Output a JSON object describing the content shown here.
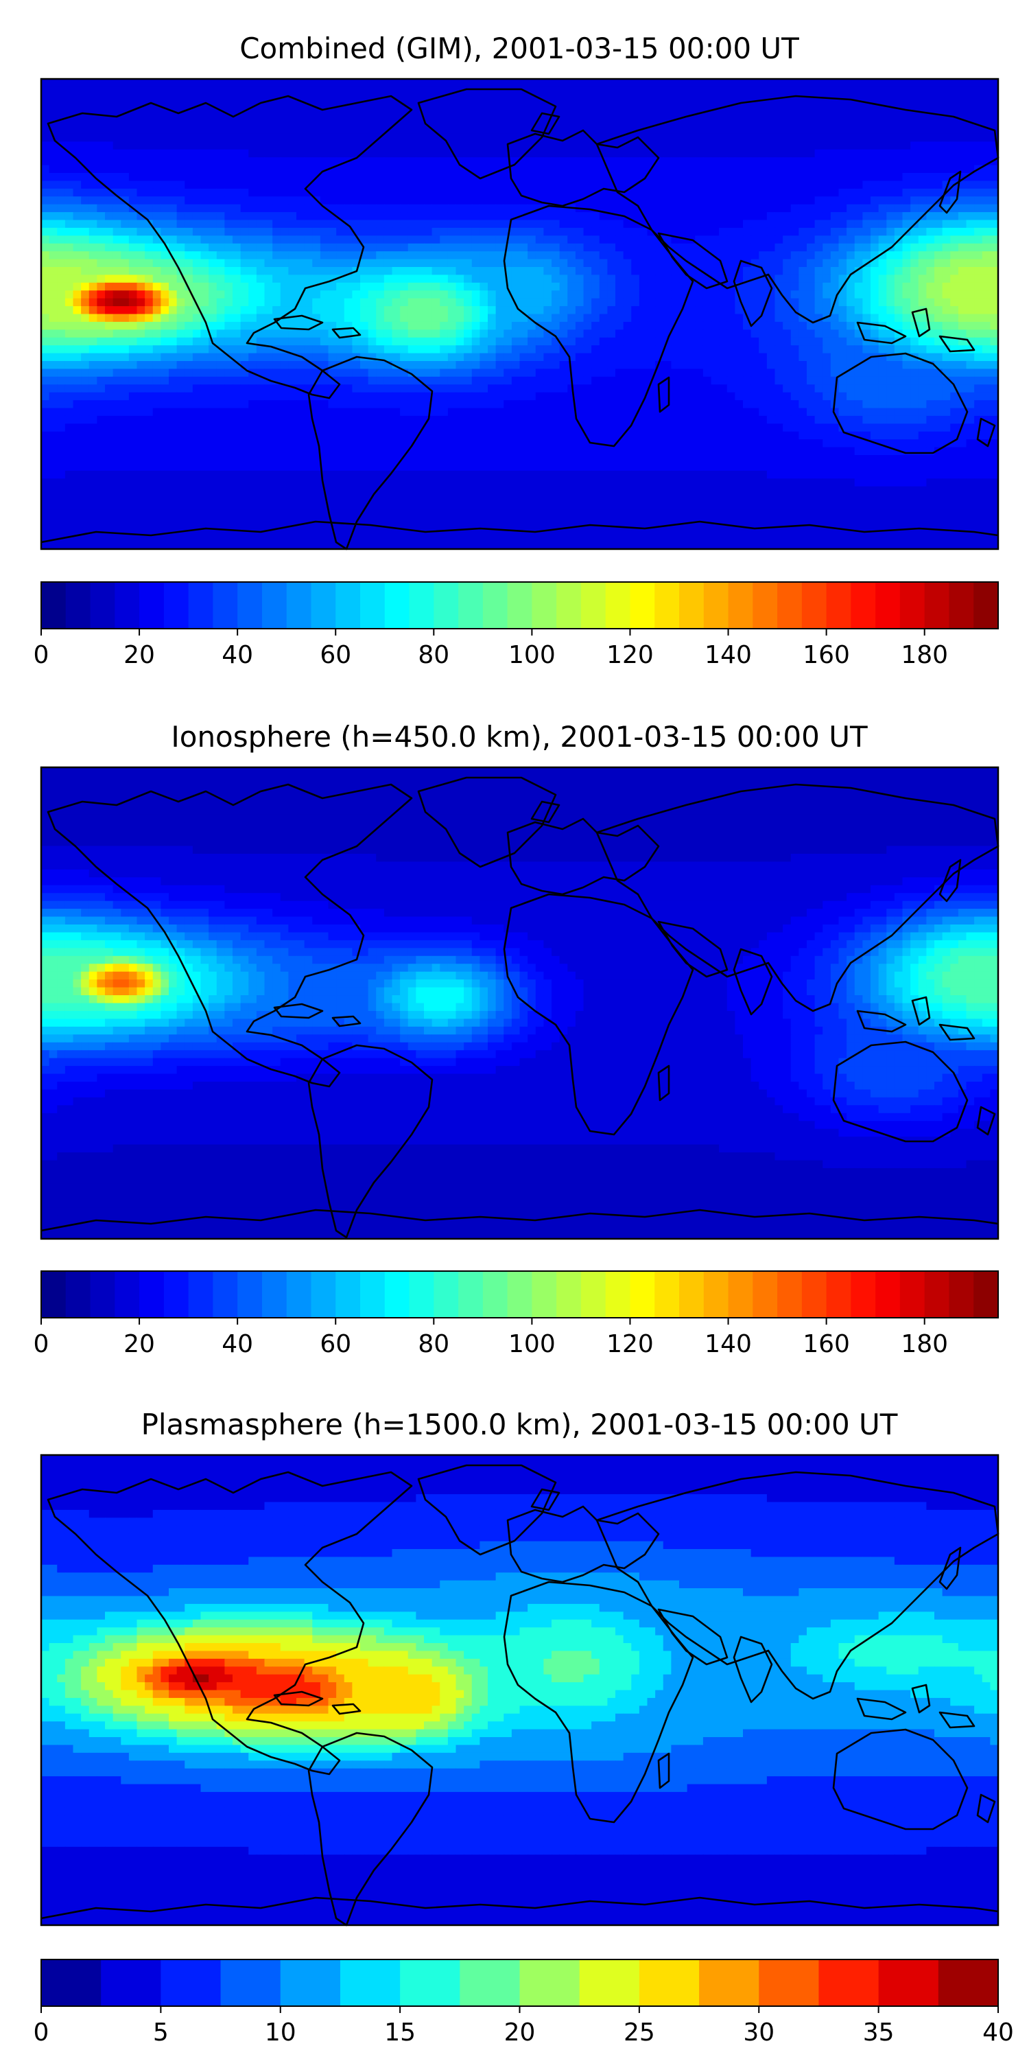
{
  "chart_data": [
    {
      "type": "heatmap",
      "title": "Combined (GIM), 2001-03-15 00:00 UT",
      "map_projection": "equirectangular world map with coastlines",
      "colormap": "jet",
      "colorbar": {
        "ticks": [
          0,
          20,
          40,
          60,
          80,
          100,
          120,
          140,
          160,
          180
        ],
        "range": [
          0,
          195
        ],
        "levels": 39
      },
      "blobs": [
        {
          "lon": -150,
          "lat": 5,
          "value": 190,
          "spread_lon": 18,
          "spread_lat": 8
        },
        {
          "lon": -150,
          "lat": 8,
          "value": 95,
          "spread_lon": 55,
          "spread_lat": 16
        },
        {
          "lon": -95,
          "lat": 4,
          "value": 60,
          "spread_lon": 40,
          "spread_lat": 12
        },
        {
          "lon": -35,
          "lat": 0,
          "value": 95,
          "spread_lon": 22,
          "spread_lat": 14
        },
        {
          "lon": 0,
          "lat": 10,
          "value": 60,
          "spread_lon": 22,
          "spread_lat": 14
        },
        {
          "lon": 175,
          "lat": 10,
          "value": 110,
          "spread_lon": 30,
          "spread_lat": 18
        },
        {
          "lon": 140,
          "lat": -25,
          "value": 45,
          "spread_lon": 25,
          "spread_lat": 15
        }
      ],
      "background_value": 25
    },
    {
      "type": "heatmap",
      "title": "Ionosphere  (h=450.0 km), 2001-03-15 00:00 UT",
      "map_projection": "equirectangular world map with coastlines",
      "colormap": "jet",
      "colorbar": {
        "ticks": [
          0,
          20,
          40,
          60,
          80,
          100,
          120,
          140,
          160,
          180
        ],
        "range": [
          0,
          195
        ],
        "levels": 39
      },
      "blobs": [
        {
          "lon": -150,
          "lat": 8,
          "value": 155,
          "spread_lon": 16,
          "spread_lat": 8
        },
        {
          "lon": -150,
          "lat": 8,
          "value": 75,
          "spread_lon": 50,
          "spread_lat": 16
        },
        {
          "lon": -30,
          "lat": 2,
          "value": 75,
          "spread_lon": 20,
          "spread_lat": 12
        },
        {
          "lon": -95,
          "lat": 2,
          "value": 45,
          "spread_lon": 40,
          "spread_lat": 12
        },
        {
          "lon": 175,
          "lat": 10,
          "value": 90,
          "spread_lon": 28,
          "spread_lat": 16
        },
        {
          "lon": 140,
          "lat": -25,
          "value": 40,
          "spread_lon": 25,
          "spread_lat": 15
        }
      ],
      "background_value": 18
    },
    {
      "type": "heatmap",
      "title": "Plasmasphere (h=1500.0 km), 2001-03-15 00:00 UT",
      "map_projection": "equirectangular world map with coastlines",
      "colormap": "jet",
      "colorbar": {
        "ticks": [
          0,
          5,
          10,
          15,
          20,
          25,
          30,
          35,
          40
        ],
        "range": [
          0,
          40
        ],
        "levels": 16
      },
      "blobs": [
        {
          "lon": -120,
          "lat": 5,
          "value": 38,
          "spread_lon": 25,
          "spread_lat": 9
        },
        {
          "lon": -85,
          "lat": 0,
          "value": 34,
          "spread_lon": 30,
          "spread_lat": 12
        },
        {
          "lon": -40,
          "lat": -2,
          "value": 27,
          "spread_lon": 18,
          "spread_lat": 12
        },
        {
          "lon": -100,
          "lat": 5,
          "value": 26,
          "spread_lon": 60,
          "spread_lat": 18
        },
        {
          "lon": 20,
          "lat": 10,
          "value": 18,
          "spread_lon": 30,
          "spread_lat": 20
        },
        {
          "lon": 140,
          "lat": 15,
          "value": 16,
          "spread_lon": 40,
          "spread_lat": 14
        },
        {
          "lon": 30,
          "lat": 10,
          "value": 12,
          "spread_lon": 120,
          "spread_lat": 30
        }
      ],
      "background_value": 6
    }
  ]
}
